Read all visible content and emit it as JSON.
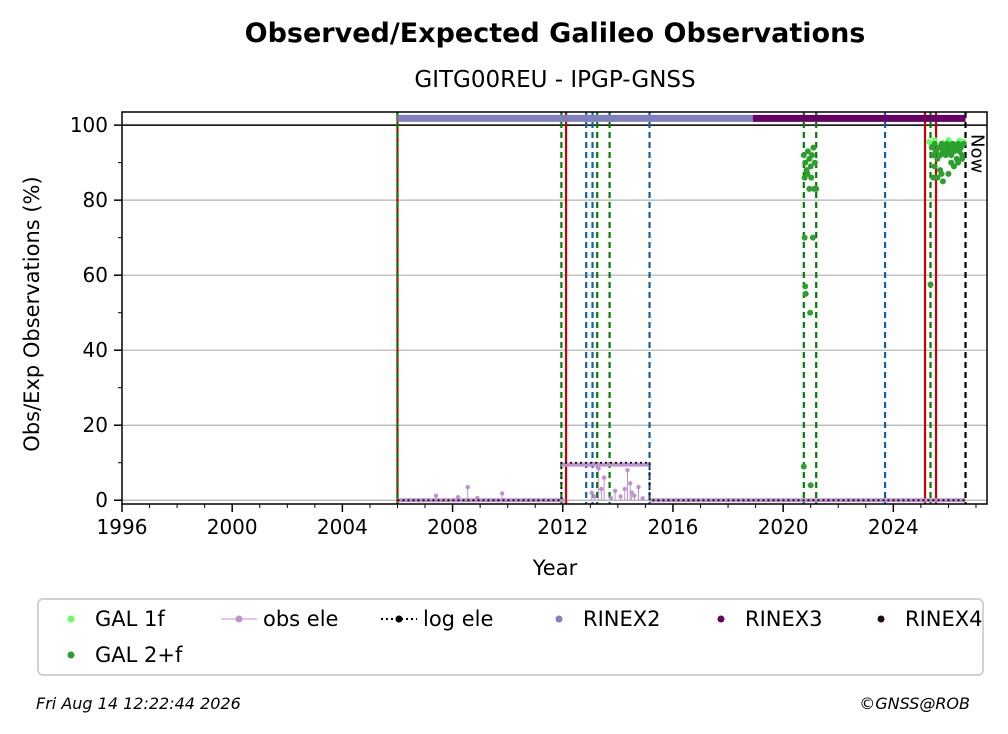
{
  "chart_data": {
    "type": "scatter",
    "title": "Observed/Expected Galileo Observations",
    "subtitle": "GITG00REU - IPGP-GNSS",
    "xlabel": "Year",
    "ylabel": "Obs/Exp Observations (%)",
    "xlim": [
      1996,
      2027.4
    ],
    "ylim": [
      -1,
      103.5
    ],
    "xticks": [
      1996,
      2000,
      2004,
      2008,
      2012,
      2016,
      2020,
      2024
    ],
    "yticks": [
      0,
      20,
      40,
      60,
      80,
      100
    ],
    "grid": "horizontal",
    "reference_line_y": 100,
    "now_label": "Now",
    "now_x": 2026.62,
    "vlines": [
      {
        "x": 2006.0,
        "color": "#cc0000",
        "style": "solid"
      },
      {
        "x": 2006.0,
        "color": "#008000",
        "style": "dashed"
      },
      {
        "x": 2011.95,
        "color": "#008000",
        "style": "dashed"
      },
      {
        "x": 2012.12,
        "color": "#cc0000",
        "style": "solid"
      },
      {
        "x": 2012.85,
        "color": "#1060b0",
        "style": "dashed"
      },
      {
        "x": 2013.08,
        "color": "#1060b0",
        "style": "dashed"
      },
      {
        "x": 2013.25,
        "color": "#008000",
        "style": "dashed"
      },
      {
        "x": 2013.7,
        "color": "#008000",
        "style": "dashed"
      },
      {
        "x": 2015.15,
        "color": "#1060b0",
        "style": "dashed"
      },
      {
        "x": 2020.75,
        "color": "#008000",
        "style": "dashed"
      },
      {
        "x": 2021.2,
        "color": "#008000",
        "style": "dashed"
      },
      {
        "x": 2023.7,
        "color": "#1060b0",
        "style": "dashed"
      },
      {
        "x": 2025.15,
        "color": "#cc0000",
        "style": "solid"
      },
      {
        "x": 2025.35,
        "color": "#008000",
        "style": "dashed"
      },
      {
        "x": 2025.55,
        "color": "#cc0000",
        "style": "solid"
      },
      {
        "x": 2026.62,
        "color": "#000000",
        "style": "dashed"
      }
    ],
    "rinex_bars": [
      {
        "name": "RINEX2",
        "x_start": 2006.0,
        "x_end": 2018.9,
        "y": 101.8,
        "color": "#8080c0"
      },
      {
        "name": "RINEX3",
        "x_start": 2018.9,
        "x_end": 2026.62,
        "y": 101.8,
        "color": "#660066"
      }
    ],
    "log_ele": {
      "color": "#000000",
      "points": [
        [
          2006.0,
          0
        ],
        [
          2011.95,
          0
        ],
        [
          2011.95,
          10
        ],
        [
          2015.15,
          10
        ],
        [
          2015.15,
          0
        ],
        [
          2026.62,
          0
        ]
      ]
    },
    "obs_ele": {
      "color": "#c090d0",
      "baseline": [
        [
          2006.0,
          0
        ],
        [
          2012.1,
          0
        ]
      ],
      "baseline2": [
        [
          2015.15,
          0
        ],
        [
          2026.62,
          0
        ]
      ],
      "segment": [
        [
          2011.95,
          9.5
        ],
        [
          2015.1,
          9.5
        ]
      ],
      "points": [
        [
          2007.4,
          1.2
        ],
        [
          2008.2,
          0.8
        ],
        [
          2008.55,
          3.5
        ],
        [
          2009.8,
          1.8
        ],
        [
          2008.9,
          0.6
        ],
        [
          2013.05,
          2.0
        ],
        [
          2013.15,
          1.0
        ],
        [
          2013.3,
          8.5
        ],
        [
          2013.4,
          3.0
        ],
        [
          2013.5,
          6.0
        ],
        [
          2013.9,
          2.5
        ],
        [
          2014.1,
          1.0
        ],
        [
          2014.25,
          3.0
        ],
        [
          2014.35,
          8.0
        ],
        [
          2014.5,
          2.0
        ],
        [
          2014.6,
          1.2
        ],
        [
          2014.75,
          3.5
        ],
        [
          2014.9,
          0.5
        ],
        [
          2014.45,
          4.5
        ],
        [
          2013.75,
          0.6
        ]
      ]
    },
    "series": [
      {
        "name": "GAL 1f",
        "color": "#66ff66",
        "points": [
          [
            2025.3,
            95.5
          ],
          [
            2025.5,
            96
          ],
          [
            2025.8,
            95.2
          ],
          [
            2026.0,
            96
          ],
          [
            2026.2,
            95
          ],
          [
            2026.4,
            95.8
          ],
          [
            2026.55,
            95.5
          ]
        ]
      },
      {
        "name": "GAL 2+f",
        "color": "#2ca02c",
        "points": [
          [
            2020.75,
            92
          ],
          [
            2020.8,
            90
          ],
          [
            2020.85,
            88
          ],
          [
            2020.9,
            93
          ],
          [
            2020.95,
            91
          ],
          [
            2021.0,
            89
          ],
          [
            2021.05,
            92
          ],
          [
            2021.1,
            94
          ],
          [
            2021.15,
            90
          ],
          [
            2020.78,
            86
          ],
          [
            2020.88,
            87
          ],
          [
            2021.02,
            86
          ],
          [
            2021.12,
            83
          ],
          [
            2021.2,
            83
          ],
          [
            2020.95,
            83
          ],
          [
            2020.78,
            70
          ],
          [
            2021.08,
            70
          ],
          [
            2020.8,
            57
          ],
          [
            2020.82,
            55
          ],
          [
            2020.98,
            50
          ],
          [
            2020.75,
            9
          ],
          [
            2021.0,
            4
          ],
          [
            2025.35,
            57.5
          ],
          [
            2025.4,
            94
          ],
          [
            2025.45,
            92
          ],
          [
            2025.5,
            95
          ],
          [
            2025.55,
            93
          ],
          [
            2025.6,
            91
          ],
          [
            2025.65,
            94
          ],
          [
            2025.7,
            92
          ],
          [
            2025.75,
            95
          ],
          [
            2025.8,
            93
          ],
          [
            2025.85,
            94
          ],
          [
            2025.9,
            92
          ],
          [
            2025.95,
            95
          ],
          [
            2026.0,
            93
          ],
          [
            2026.05,
            94
          ],
          [
            2026.1,
            92
          ],
          [
            2026.15,
            95
          ],
          [
            2026.2,
            93
          ],
          [
            2026.25,
            94
          ],
          [
            2026.3,
            91
          ],
          [
            2026.35,
            95
          ],
          [
            2026.4,
            93
          ],
          [
            2026.45,
            94
          ],
          [
            2026.5,
            92
          ],
          [
            2026.55,
            95
          ],
          [
            2025.5,
            89
          ],
          [
            2025.7,
            88
          ],
          [
            2025.75,
            87
          ],
          [
            2026.0,
            87
          ],
          [
            2025.6,
            86
          ],
          [
            2025.8,
            85
          ],
          [
            2025.45,
            86
          ],
          [
            2026.2,
            89
          ],
          [
            2026.1,
            90
          ],
          [
            2026.35,
            90
          ],
          [
            2026.5,
            91
          ]
        ]
      }
    ],
    "legend": {
      "placement": "bottom",
      "entries": [
        {
          "label": "GAL 1f",
          "kind": "dot",
          "color": "#66ff66"
        },
        {
          "label": "obs ele",
          "kind": "line-dot",
          "color": "#c090d0"
        },
        {
          "label": "log ele",
          "kind": "dotted-dot",
          "color": "#000000"
        },
        {
          "label": "RINEX2",
          "kind": "dot",
          "color": "#8080c0"
        },
        {
          "label": "RINEX3",
          "kind": "dot",
          "color": "#660066"
        },
        {
          "label": "RINEX4",
          "kind": "dot",
          "color": "#1a0a1a"
        },
        {
          "label": "GAL 2+f",
          "kind": "dot",
          "color": "#2ca02c"
        }
      ]
    }
  },
  "footer": {
    "timestamp": "Fri Aug 14 12:22:44 2026",
    "credit": "©GNSS@ROB"
  }
}
